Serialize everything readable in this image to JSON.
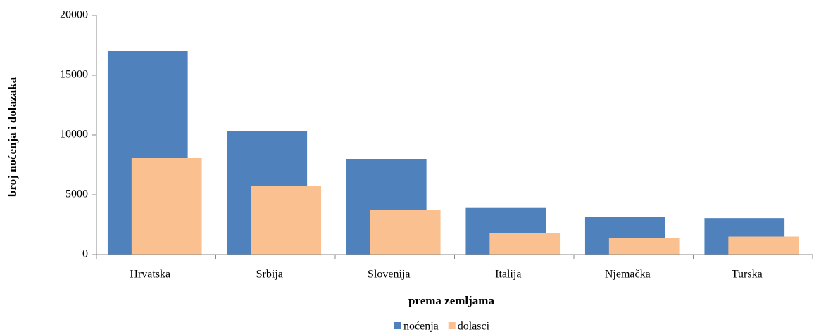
{
  "chart_data": {
    "type": "overlapped_bar",
    "xlabel": "prema zemljama",
    "ylabel": "broj noćenja i dolazaka",
    "categories": [
      "Hrvatska",
      "Srbija",
      "Slovenija",
      "Italija",
      "Njemačka",
      "Turska"
    ],
    "series": [
      {
        "name": "noćenja",
        "color": "#4f81bd",
        "values": [
          17000,
          10300,
          8000,
          3900,
          3150,
          3050
        ]
      },
      {
        "name": "dolasci",
        "color": "#fac090",
        "values": [
          8100,
          5750,
          3750,
          1800,
          1400,
          1500
        ]
      }
    ],
    "ylim": [
      0,
      20000
    ],
    "yticks": [
      0,
      5000,
      10000,
      15000,
      20000
    ],
    "legend": "bottom"
  }
}
